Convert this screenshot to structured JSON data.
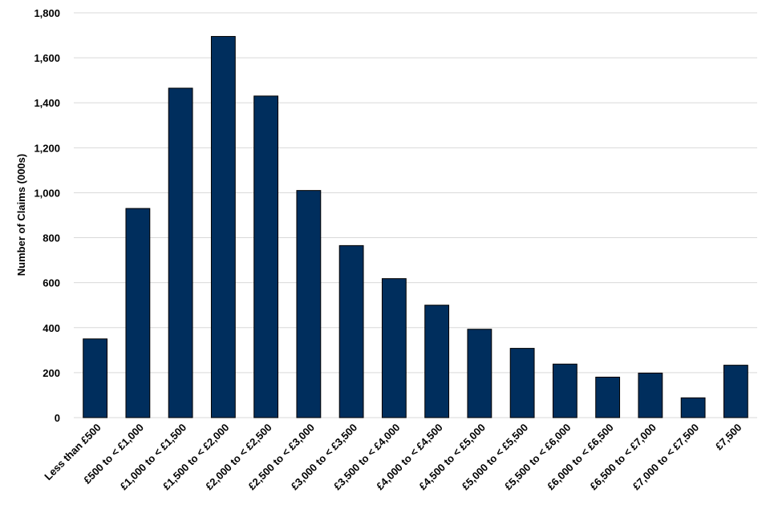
{
  "chart_data": {
    "type": "bar",
    "title": "",
    "xlabel": "",
    "ylabel": "Number of Claims (000s)",
    "ylim": [
      0,
      1800
    ],
    "yticks": [
      0,
      200,
      400,
      600,
      800,
      1000,
      1200,
      1400,
      1600,
      1800
    ],
    "ytick_labels": [
      "0",
      "200",
      "400",
      "600",
      "800",
      "1,000",
      "1,200",
      "1,400",
      "1,600",
      "1,800"
    ],
    "grid": true,
    "legend": "none",
    "bar_color": "#002E5D",
    "categories": [
      "Less than £500",
      "£500 to < £1,000",
      "£1,000 to < £1,500",
      "£1,500 to < £2,000",
      "£2,000 to < £2,500",
      "£2,500 to < £3,000",
      "£3,000 to < £3,500",
      "£3,500 to < £4,000",
      "£4,000 to < £4,500",
      "£4,500 to < £5,000",
      "£5,000 to < £5,500",
      "£5,500 to < £6,000",
      "£6,000 to < £6,500",
      "£6,500 to < £7,000",
      "£7,000 to < £7,500",
      "£7,500"
    ],
    "values": [
      350,
      930,
      1465,
      1695,
      1430,
      1010,
      765,
      618,
      500,
      393,
      308,
      238,
      180,
      198,
      88,
      233
    ]
  }
}
